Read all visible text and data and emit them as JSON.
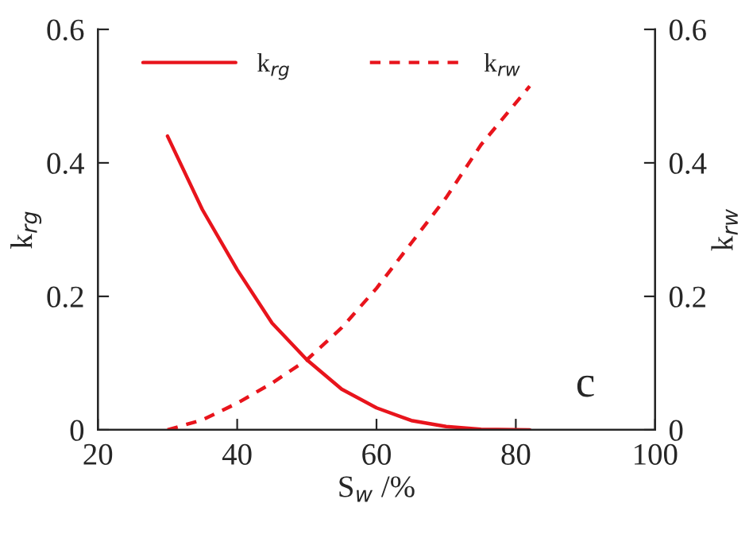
{
  "chart_data": {
    "type": "line",
    "xlabel": "S$_{w}$ /%",
    "ylabel": "k$_{rg}$",
    "y2label": "k$_{rw}$",
    "x": [
      30,
      35,
      40,
      45,
      50,
      55,
      60,
      65,
      70,
      75,
      82
    ],
    "series": [
      {
        "name": "k$_{rg}$",
        "color": "#e8141c",
        "line_style": "solid",
        "values": [
          0.44,
          0.33,
          0.24,
          0.16,
          0.105,
          0.061,
          0.033,
          0.014,
          0.005,
          0.001,
          0
        ]
      },
      {
        "name": "k$_{rw}$",
        "color": "#e8141c",
        "line_style": "dashed",
        "axis": "y2",
        "values": [
          0,
          0.015,
          0.04,
          0.07,
          0.105,
          0.153,
          0.212,
          0.28,
          0.348,
          0.427,
          0.515
        ]
      }
    ],
    "xlim": [
      20,
      100
    ],
    "xticks": [
      20,
      40,
      60,
      80,
      100
    ],
    "ylim": [
      0,
      0.6
    ],
    "yticks": [
      0,
      0.2,
      0.4,
      0.6
    ],
    "y2lim": [
      0,
      0.6
    ],
    "y2ticks": [
      0,
      0.2,
      0.4,
      0.6
    ],
    "annotations": [
      "c"
    ],
    "legend": "top",
    "grid": false
  }
}
